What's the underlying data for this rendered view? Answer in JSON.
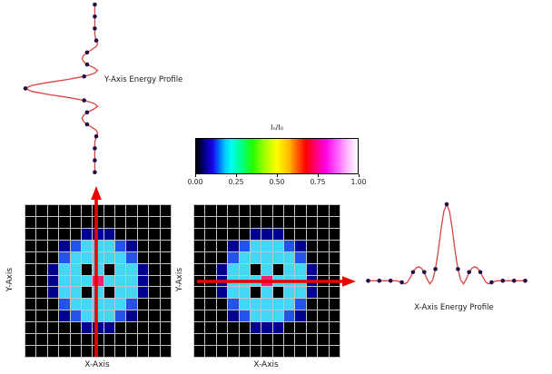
{
  "figure": {
    "background": "#ffffff"
  },
  "colors": {
    "profile_line": "#d94545",
    "profile_dot": "#221045",
    "arrow": "#ee0000",
    "grid_line": "#c4c4c4",
    "heatmap_values": {
      ".": "#000000",
      "N": "#000090",
      "B": "#2353e8",
      "C": "#45d7f7",
      "K": "#000000",
      "M": "#ee2277"
    }
  },
  "profile_shape": {
    "t_min": -7,
    "t_step": 0.25,
    "curve": [
      0.02,
      0.02,
      0.02,
      0.02,
      0.02,
      0.02,
      0.02,
      0.02,
      0.02,
      0.02,
      0.02,
      0.01,
      0.0,
      -0.02,
      0.0,
      0.06,
      0.13,
      0.18,
      0.2,
      0.18,
      0.13,
      0.04,
      -0.02,
      0.03,
      0.17,
      0.4,
      0.68,
      0.91,
      1.0,
      0.91,
      0.68,
      0.4,
      0.17,
      0.03,
      -0.02,
      0.04,
      0.13,
      0.18,
      0.2,
      0.18,
      0.13,
      0.06,
      0.0,
      -0.02,
      0.0,
      0.01,
      0.02,
      0.02,
      0.02,
      0.02,
      0.02,
      0.02,
      0.02,
      0.02,
      0.02,
      0.02,
      0.02
    ]
  },
  "chart_data": [
    {
      "type": "line",
      "title": "Y-Axis Energy Profile",
      "orientation": "vertical",
      "x": [
        -7,
        -6,
        -5,
        -4,
        -3,
        -2,
        -1,
        0,
        1,
        2,
        3,
        4,
        5,
        6,
        7
      ],
      "points": [
        0.02,
        0.02,
        0.02,
        0.0,
        0.13,
        0.13,
        0.17,
        1.0,
        0.17,
        0.13,
        0.13,
        0.0,
        0.02,
        0.02,
        0.02
      ],
      "ylim": [
        0,
        1
      ],
      "grid": false,
      "legend": "none"
    },
    {
      "type": "heatmap",
      "xlabel": "X-Axis",
      "ylabel": "Y-Axis",
      "rows": 13,
      "cols": 13,
      "overlay_arrow": "vertical-up",
      "pattern": [
        ".............",
        ".............",
        ".....NNN.....",
        "...NBCCCBN...",
        "...BCCCCCB...",
        "..NCCKCKCCN..",
        "..NCCCMCCCN..",
        "..NCCKCKCCN..",
        "...BCCCCCB...",
        "...NBCCCBN...",
        ".....NNN.....",
        ".............",
        "............."
      ]
    },
    {
      "type": "heatmap",
      "xlabel": "X-Axis",
      "ylabel": "Y-Axis",
      "rows": 13,
      "cols": 13,
      "overlay_arrow": "horizontal-right",
      "pattern": [
        ".............",
        ".............",
        ".....NNN.....",
        "...NBCCCBN...",
        "...BCCCCCB...",
        "..NCCKCKCCN..",
        "..NCCCMCCCN..",
        "..NCCKCKCCN..",
        "...BCCCCCB...",
        "...NBCCCBN...",
        ".....NNN.....",
        ".............",
        "............."
      ]
    },
    {
      "type": "line",
      "title": "X-Axis Energy Profile",
      "orientation": "horizontal",
      "x": [
        -7,
        -6,
        -5,
        -4,
        -3,
        -2,
        -1,
        0,
        1,
        2,
        3,
        4,
        5,
        6,
        7
      ],
      "points": [
        0.02,
        0.02,
        0.02,
        0.0,
        0.13,
        0.13,
        0.17,
        1.0,
        0.17,
        0.13,
        0.13,
        0.0,
        0.02,
        0.02,
        0.02
      ],
      "ylim": [
        0,
        1
      ],
      "grid": false,
      "legend": "none"
    },
    {
      "type": "colorbar",
      "title": "Iₙ/I₀",
      "ticks": [
        "0.00",
        "0.25",
        "0.50",
        "0.75",
        "1.00"
      ],
      "range": [
        0,
        1
      ],
      "stops": [
        [
          "#000000",
          0
        ],
        [
          "#00007f",
          5
        ],
        [
          "#1a00e6",
          10
        ],
        [
          "#0066ff",
          14
        ],
        [
          "#00ccff",
          18
        ],
        [
          "#00ffee",
          22
        ],
        [
          "#00ff88",
          28
        ],
        [
          "#22ff00",
          35
        ],
        [
          "#9dff00",
          42
        ],
        [
          "#ffff00",
          50
        ],
        [
          "#ffb300",
          58
        ],
        [
          "#ff5500",
          63
        ],
        [
          "#ff0000",
          68
        ],
        [
          "#ff0077",
          74
        ],
        [
          "#ff00e1",
          80
        ],
        [
          "#ff5aff",
          87
        ],
        [
          "#ffb3ff",
          93
        ],
        [
          "#ffffff",
          100
        ]
      ]
    }
  ]
}
